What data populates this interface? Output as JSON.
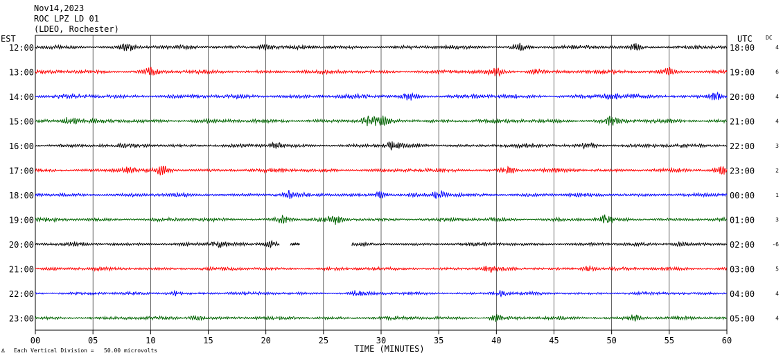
{
  "header": {
    "date": "Nov14,2023",
    "station": "ROC LPZ LD 01",
    "network": "(LDEO, Rochester)"
  },
  "left_axis_title": "EST",
  "right_axis_title": "UTC",
  "dc_title": "DC",
  "footer": {
    "note": "Each Vertical Division =   50.00 microvolts"
  },
  "chart_data": {
    "type": "line",
    "title": "",
    "xlabel": "TIME (MINUTES)",
    "ylabel": "",
    "xlim": [
      0,
      60
    ],
    "x_ticks": [
      "00",
      "05",
      "10",
      "15",
      "20",
      "25",
      "30",
      "35",
      "40",
      "45",
      "50",
      "55",
      "60"
    ],
    "grid": true,
    "rows": [
      {
        "est": "12:00",
        "utc": "18:00",
        "dc": "4",
        "color": "#000000",
        "amp": 1.0,
        "bursts": [
          8,
          20,
          42,
          52
        ]
      },
      {
        "est": "13:00",
        "utc": "19:00",
        "dc": "6",
        "color": "#ff0000",
        "amp": 1.0,
        "bursts": [
          10,
          40,
          43.5,
          55
        ]
      },
      {
        "est": "14:00",
        "utc": "20:00",
        "dc": "4",
        "color": "#0000ff",
        "amp": 1.1,
        "bursts": [
          32.5,
          50,
          59
        ]
      },
      {
        "est": "15:00",
        "utc": "21:00",
        "dc": "4",
        "color": "#006400",
        "amp": 1.1,
        "bursts": [
          3,
          29,
          30,
          50
        ]
      },
      {
        "est": "16:00",
        "utc": "22:00",
        "dc": "3",
        "color": "#000000",
        "amp": 1.0,
        "bursts": [
          21,
          31,
          48
        ]
      },
      {
        "est": "17:00",
        "utc": "23:00",
        "dc": "2",
        "color": "#ff0000",
        "amp": 1.0,
        "bursts": [
          8,
          11,
          41,
          59.5
        ]
      },
      {
        "est": "18:00",
        "utc": "00:00",
        "dc": "1",
        "color": "#0000ff",
        "amp": 1.0,
        "bursts": [
          22,
          30,
          35
        ]
      },
      {
        "est": "19:00",
        "utc": "01:00",
        "dc": "3",
        "color": "#006400",
        "amp": 1.0,
        "bursts": [
          21.5,
          26,
          49.5
        ]
      },
      {
        "est": "20:00",
        "utc": "02:00",
        "dc": "-6",
        "color": "#000000",
        "amp": 0.9,
        "bursts": [
          16,
          20.5,
          56
        ],
        "gaps": [
          [
            21.2,
            22.1
          ],
          [
            23.0,
            27.4
          ]
        ]
      },
      {
        "est": "21:00",
        "utc": "03:00",
        "dc": "5",
        "color": "#ff0000",
        "amp": 0.9,
        "bursts": [
          39.5,
          48
        ]
      },
      {
        "est": "22:00",
        "utc": "04:00",
        "dc": "4",
        "color": "#0000ff",
        "amp": 0.8,
        "bursts": [
          12,
          28,
          40.5
        ]
      },
      {
        "est": "23:00",
        "utc": "05:00",
        "dc": "4",
        "color": "#006400",
        "amp": 0.9,
        "bursts": [
          14,
          40,
          52
        ]
      }
    ]
  }
}
